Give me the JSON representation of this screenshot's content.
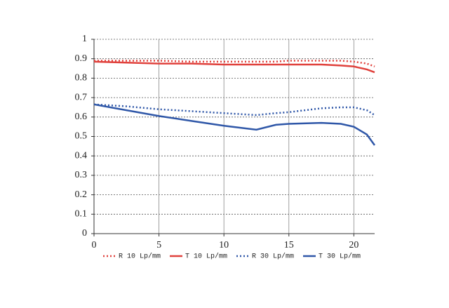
{
  "chart_data": {
    "type": "line",
    "x": [
      0,
      2.5,
      5,
      7.5,
      10,
      12.5,
      14,
      15,
      17.5,
      19,
      20,
      21,
      21.6
    ],
    "series": [
      {
        "name": "R 10 Lp/mm",
        "color": "#e0413c",
        "style": "dotted",
        "values": [
          0.89,
          0.89,
          0.89,
          0.885,
          0.885,
          0.885,
          0.885,
          0.89,
          0.89,
          0.89,
          0.885,
          0.875,
          0.86
        ]
      },
      {
        "name": "T 10 Lp/mm",
        "color": "#e0413c",
        "style": "solid",
        "values": [
          0.885,
          0.88,
          0.875,
          0.875,
          0.87,
          0.87,
          0.87,
          0.87,
          0.87,
          0.865,
          0.86,
          0.845,
          0.83
        ]
      },
      {
        "name": "R 30 Lp/mm",
        "color": "#2f57a8",
        "style": "dotted",
        "values": [
          0.665,
          0.655,
          0.64,
          0.63,
          0.62,
          0.61,
          0.62,
          0.625,
          0.645,
          0.65,
          0.65,
          0.635,
          0.61
        ]
      },
      {
        "name": "T 30 Lp/mm",
        "color": "#2f57a8",
        "style": "solid",
        "values": [
          0.665,
          0.635,
          0.605,
          0.58,
          0.555,
          0.535,
          0.56,
          0.565,
          0.57,
          0.565,
          0.55,
          0.51,
          0.455
        ]
      }
    ],
    "xlim": [
      0,
      21.6
    ],
    "xticks": [
      0,
      5,
      10,
      15,
      20
    ],
    "ylim": [
      0,
      1
    ],
    "yticks": [
      0,
      0.1,
      0.2,
      0.3,
      0.4,
      0.5,
      0.6,
      0.7,
      0.8,
      0.9,
      1
    ],
    "grid": true,
    "legend": "bottom"
  }
}
